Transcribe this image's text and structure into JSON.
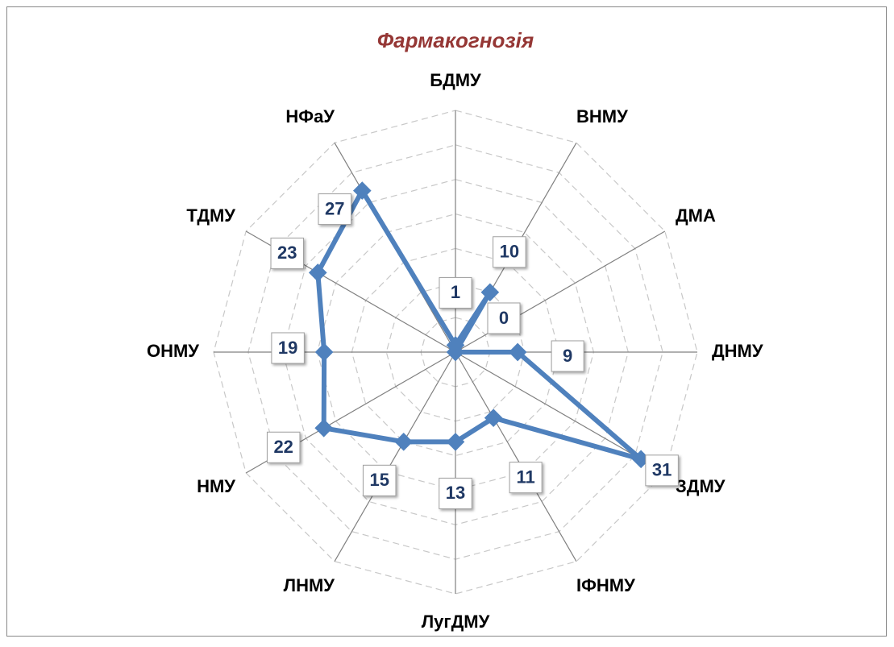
{
  "chart_data": {
    "type": "radar",
    "title": "Фармакогнозія",
    "categories": [
      "БДМУ",
      "ВНМУ",
      "ДМА",
      "ДНМУ",
      "ЗДМУ",
      "ІФНМУ",
      "ЛугДМУ",
      "ЛНМУ",
      "НМУ",
      "ОНМУ",
      "ТДМУ",
      "НФаУ"
    ],
    "values": [
      1,
      10,
      0,
      9,
      31,
      11,
      13,
      15,
      22,
      19,
      23,
      27
    ],
    "color": "#4f81bd",
    "title_color": "#953735",
    "ylim": [
      0,
      35
    ],
    "yticks": [
      0,
      5,
      10,
      15,
      20,
      25,
      30,
      35
    ],
    "grid": true
  }
}
